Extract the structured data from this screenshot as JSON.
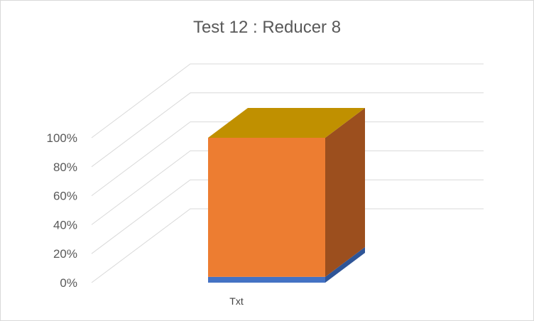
{
  "chart_data": {
    "type": "bar",
    "stacked": "percent",
    "three_d": true,
    "title": "Test 12 : Reducer 8",
    "categories": [
      "Txt"
    ],
    "series": [
      {
        "values": [
          4
        ],
        "color": "#4472C4",
        "side_color": "#2F5597"
      },
      {
        "values": [
          96
        ],
        "color": "#ED7D31",
        "side_color": "#9C4F1E",
        "top_color": "#C09000"
      }
    ],
    "y_ticks": [
      "0%",
      "20%",
      "40%",
      "60%",
      "80%",
      "100%"
    ],
    "ylim": [
      0,
      100
    ],
    "grid": true,
    "legend": "none"
  }
}
